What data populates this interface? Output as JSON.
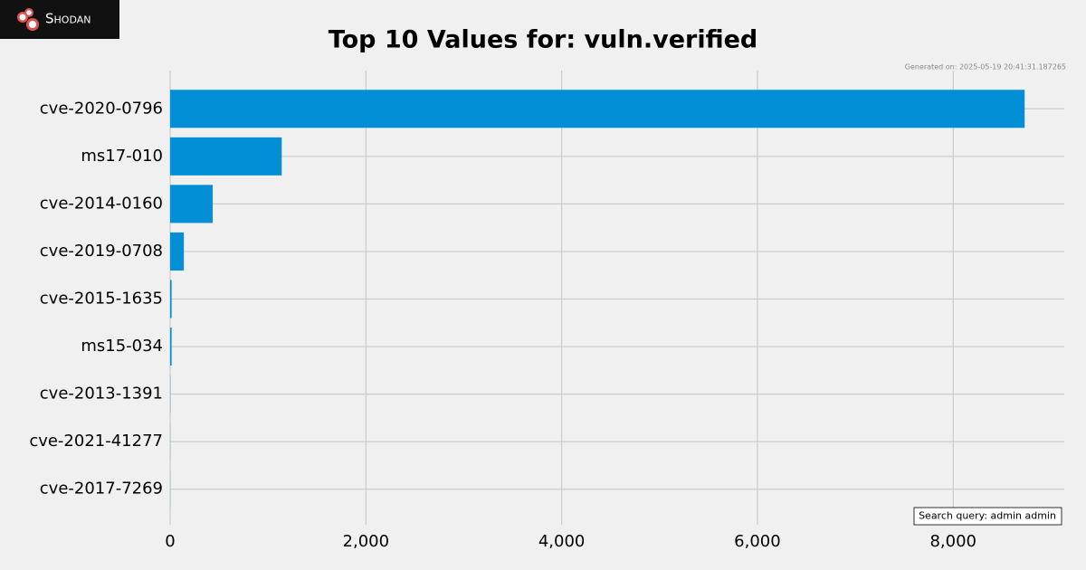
{
  "logo": "Shodan",
  "generated": "Generated on: 2025-05-19 20:41:31.187265",
  "search_query": "Search query: admin admin",
  "chart_data": {
    "type": "hbar",
    "title": "Top 10 Values for: vuln.verified",
    "categories": [
      "cve-2020-0796",
      "ms17-010",
      "cve-2014-0160",
      "cve-2019-0708",
      "cve-2015-1635",
      "ms15-034",
      "cve-2013-1391",
      "cve-2021-41277",
      "cve-2017-7269"
    ],
    "values": [
      8730,
      1140,
      435,
      140,
      15,
      15,
      2,
      1,
      1
    ],
    "color": "#038fd6",
    "xlim": [
      0,
      9135
    ],
    "xticks": [
      0,
      {
        "value": 2000,
        "label": "2,000"
      },
      {
        "value": 4000,
        "label": "4,000"
      },
      {
        "value": 6000,
        "label": "6,000"
      },
      {
        "value": 8000,
        "label": "8,000"
      }
    ],
    "grid": true
  }
}
